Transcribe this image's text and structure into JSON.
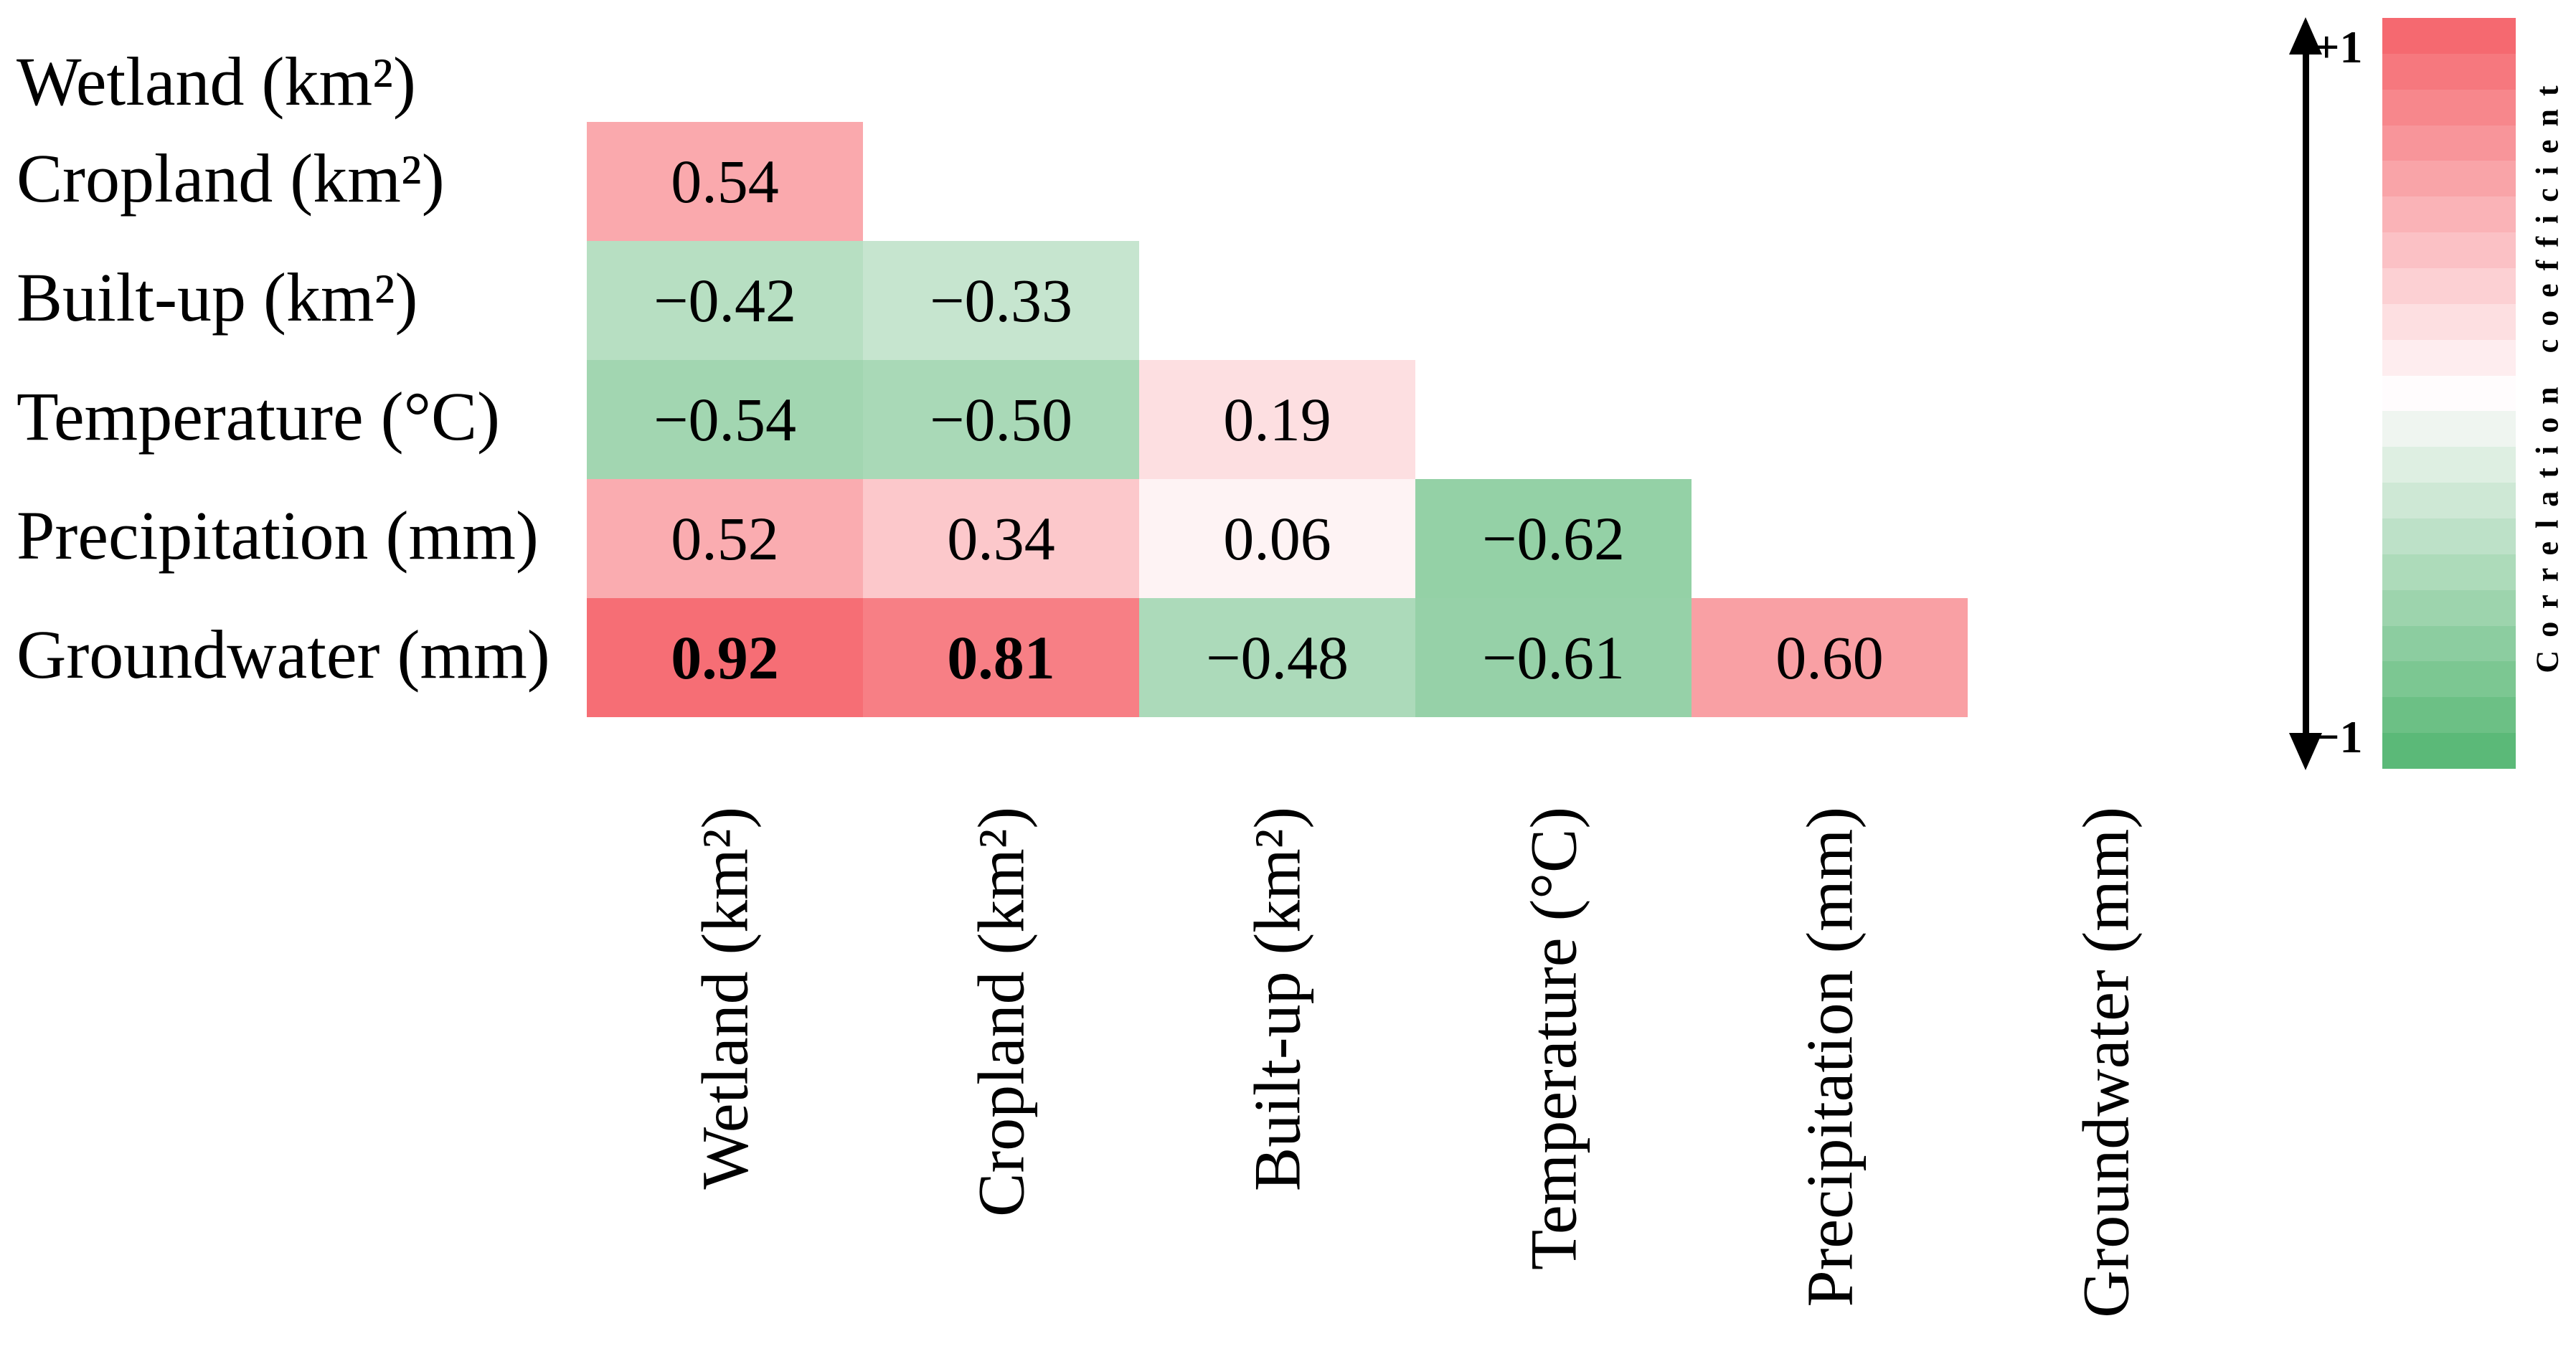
{
  "figure": {
    "background": "#ffffff",
    "text_color": "#000000"
  },
  "chart_data": {
    "type": "heatmap",
    "title": "",
    "triangle": "lower",
    "variables": [
      "Wetland (km²)",
      "Cropland (km²)",
      "Built-up (km²)",
      "Temperature (°C)",
      "Precipitation (mm)",
      "Groundwater (mm)"
    ],
    "cells": [
      {
        "row": 1,
        "col": 0,
        "value": 0.54,
        "label": "0.54",
        "bold": false
      },
      {
        "row": 2,
        "col": 0,
        "value": -0.42,
        "label": "−0.42",
        "bold": false
      },
      {
        "row": 2,
        "col": 1,
        "value": -0.33,
        "label": "−0.33",
        "bold": false
      },
      {
        "row": 3,
        "col": 0,
        "value": -0.54,
        "label": "−0.54",
        "bold": false
      },
      {
        "row": 3,
        "col": 1,
        "value": -0.5,
        "label": "−0.50",
        "bold": false
      },
      {
        "row": 3,
        "col": 2,
        "value": 0.19,
        "label": "0.19",
        "bold": false
      },
      {
        "row": 4,
        "col": 0,
        "value": 0.52,
        "label": "0.52",
        "bold": false
      },
      {
        "row": 4,
        "col": 1,
        "value": 0.34,
        "label": "0.34",
        "bold": false
      },
      {
        "row": 4,
        "col": 2,
        "value": 0.06,
        "label": "0.06",
        "bold": false
      },
      {
        "row": 4,
        "col": 3,
        "value": -0.62,
        "label": "−0.62",
        "bold": false
      },
      {
        "row": 5,
        "col": 0,
        "value": 0.92,
        "label": "0.92",
        "bold": true
      },
      {
        "row": 5,
        "col": 1,
        "value": 0.81,
        "label": "0.81",
        "bold": true
      },
      {
        "row": 5,
        "col": 2,
        "value": -0.48,
        "label": "−0.48",
        "bold": false
      },
      {
        "row": 5,
        "col": 3,
        "value": -0.61,
        "label": "−0.61",
        "bold": false
      },
      {
        "row": 5,
        "col": 4,
        "value": 0.6,
        "label": "0.60",
        "bold": false
      }
    ],
    "colorscale": {
      "positive_end": "#f56269",
      "neutral": "#fffcfd",
      "negative_end": "#53b671",
      "steps": 21
    },
    "legend": {
      "top_label": "+1",
      "bottom_label": "−1",
      "title": "Correlation coefficient",
      "range_min": -1,
      "range_max": 1
    }
  }
}
